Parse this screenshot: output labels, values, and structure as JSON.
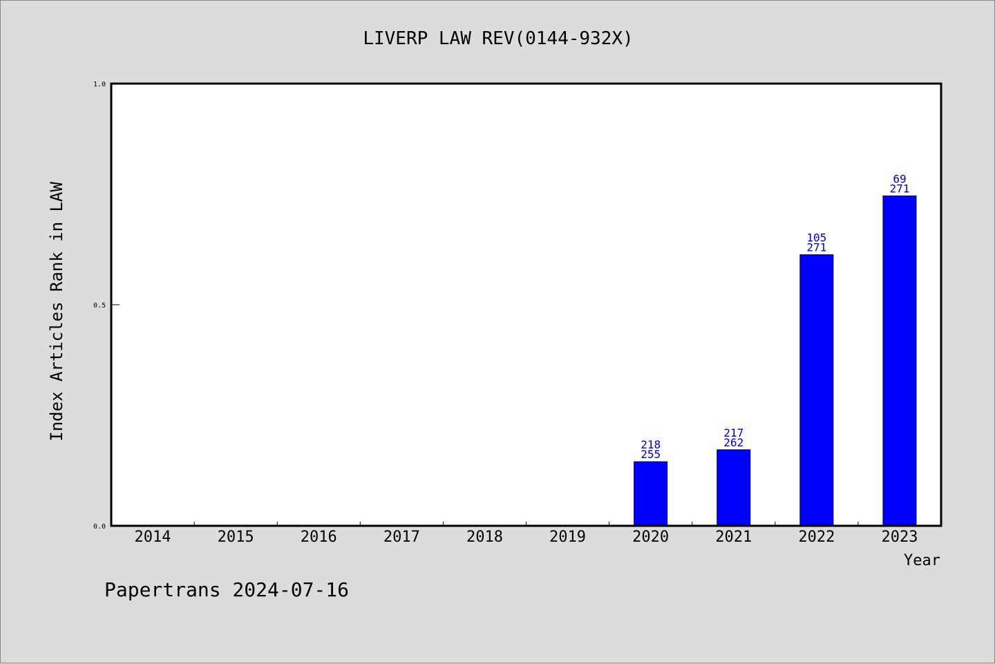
{
  "footer": "Papertrans 2024-07-16",
  "colors": {
    "bar": "#0000ff",
    "bar_label": "#0000cc",
    "background": "#dcdcdc",
    "plot_area": "#ffffff"
  },
  "chart_data": {
    "type": "bar",
    "title": "LIVERP LAW REV(0144-932X)",
    "xlabel": "Year",
    "ylabel": "Index Articles Rank in LAW",
    "ylim": [
      0,
      1.0
    ],
    "yticks": [
      0.0,
      0.5,
      1.0
    ],
    "ytick_labels": [
      "0.0",
      "0.5",
      "1.0"
    ],
    "grid": false,
    "categories": [
      "2014",
      "2015",
      "2016",
      "2017",
      "2018",
      "2019",
      "2020",
      "2021",
      "2022",
      "2023"
    ],
    "values": [
      null,
      null,
      null,
      null,
      null,
      null,
      0.145,
      0.172,
      0.613,
      0.746
    ],
    "labels": [
      null,
      null,
      null,
      null,
      null,
      null,
      [
        "218",
        "255"
      ],
      [
        "217",
        "262"
      ],
      [
        "105",
        "271"
      ],
      [
        "69",
        "271"
      ]
    ]
  }
}
